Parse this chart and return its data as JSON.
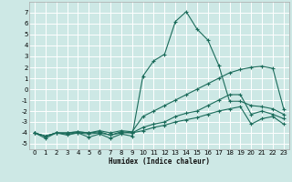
{
  "xlabel": "Humidex (Indice chaleur)",
  "background_color": "#cde8e5",
  "grid_color": "#ffffff",
  "line_color": "#1a6b5a",
  "x_values": [
    0,
    1,
    2,
    3,
    4,
    5,
    6,
    7,
    8,
    9,
    10,
    11,
    12,
    13,
    14,
    15,
    16,
    17,
    18,
    19,
    20,
    21,
    22,
    23
  ],
  "series": [
    [
      -4.0,
      -4.5,
      -4.0,
      -4.2,
      -4.0,
      -4.4,
      -4.1,
      -4.5,
      -4.1,
      -4.3,
      1.2,
      2.6,
      3.2,
      6.2,
      7.1,
      5.5,
      4.5,
      2.2,
      -1.1,
      -1.1,
      -1.5,
      -1.6,
      -1.8,
      -2.3
    ],
    [
      -4.0,
      -4.3,
      -4.0,
      -4.0,
      -3.9,
      -4.0,
      -3.8,
      -4.0,
      -3.8,
      -3.9,
      -2.5,
      -2.0,
      -1.5,
      -1.0,
      -0.5,
      0.0,
      0.5,
      1.0,
      1.5,
      1.8,
      2.0,
      2.1,
      1.9,
      -1.8
    ],
    [
      -4.0,
      -4.3,
      -4.0,
      -4.0,
      -3.9,
      -4.0,
      -3.9,
      -4.2,
      -3.9,
      -4.0,
      -3.5,
      -3.2,
      -3.0,
      -2.5,
      -2.2,
      -2.0,
      -1.5,
      -1.0,
      -0.5,
      -0.5,
      -2.3,
      -2.0,
      -2.3,
      -2.7
    ],
    [
      -4.0,
      -4.3,
      -4.0,
      -4.1,
      -4.0,
      -4.1,
      -4.0,
      -4.2,
      -4.0,
      -4.0,
      -3.8,
      -3.5,
      -3.3,
      -3.0,
      -2.8,
      -2.6,
      -2.3,
      -2.0,
      -1.8,
      -1.6,
      -3.2,
      -2.7,
      -2.5,
      -3.2
    ]
  ],
  "ylim": [
    -5.5,
    8.0
  ],
  "xlim": [
    -0.5,
    23.5
  ],
  "yticks": [
    -5,
    -4,
    -3,
    -2,
    -1,
    0,
    1,
    2,
    3,
    4,
    5,
    6,
    7
  ],
  "xticks": [
    0,
    1,
    2,
    3,
    4,
    5,
    6,
    7,
    8,
    9,
    10,
    11,
    12,
    13,
    14,
    15,
    16,
    17,
    18,
    19,
    20,
    21,
    22,
    23
  ]
}
